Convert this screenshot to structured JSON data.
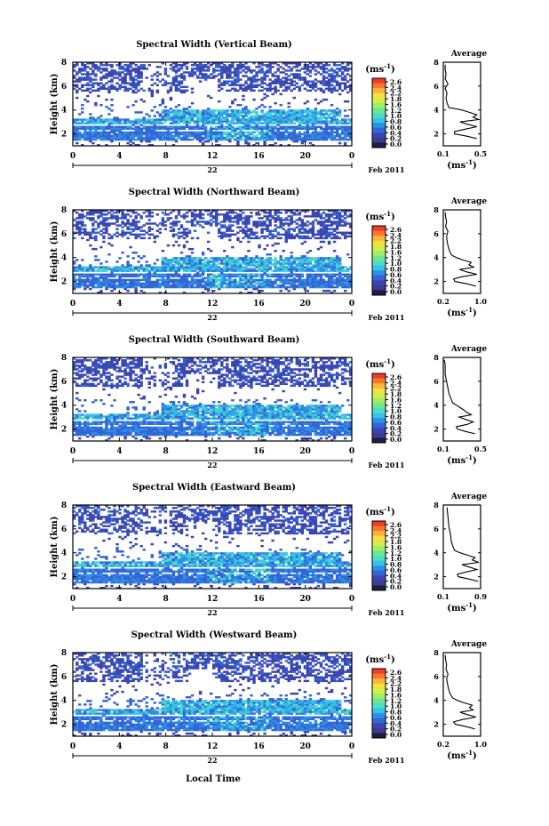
{
  "figure": {
    "xlabel": "Local Time",
    "date_label": "Feb 2011",
    "day_label": "22"
  },
  "colorbar": {
    "unit": "(ms",
    "unit_sup": "-1",
    "unit_close": ")",
    "ticks": [
      "2.6",
      "2.4",
      "2.2",
      "1.8",
      "1.6",
      "1.2",
      "1.0",
      "0.8",
      "0.6",
      "0.4",
      "0.2",
      "0.0"
    ],
    "colors": [
      "#f03a25",
      "#f5782a",
      "#f8b53b",
      "#f5df42",
      "#d3ee4c",
      "#a0ee66",
      "#6ee690",
      "#4fdcc4",
      "#37c2e6",
      "#2e8fe6",
      "#3565d4",
      "#3b46b0",
      "#3c3c90",
      "#1e1e40"
    ]
  },
  "chart_data": [
    {
      "type": "heatmap",
      "title": "Spectral Width (Vertical Beam)",
      "ylabel": "Height (km)",
      "x_ticks": [
        "0",
        "4",
        "8",
        "12",
        "16",
        "20",
        "0"
      ],
      "y_ticks": [
        "2",
        "4",
        "6",
        "8"
      ],
      "xlim": [
        0,
        24
      ],
      "ylim": [
        1,
        8
      ],
      "profile": {
        "title": "Average",
        "xlabel": "(ms",
        "x_ticks": [
          "0.1",
          "0.5"
        ],
        "xlim": [
          0.1,
          0.5
        ],
        "y_ticks": [
          "2",
          "4",
          "6",
          "8"
        ],
        "ylim": [
          1,
          8
        ],
        "height_km": [
          1.6,
          1.8,
          2.0,
          2.2,
          2.4,
          2.6,
          2.8,
          3.0,
          3.2,
          3.4,
          3.6,
          3.8,
          4.0,
          4.2,
          4.6,
          5.0,
          5.4,
          5.8,
          6.2,
          6.6,
          7.0,
          7.4,
          7.8
        ],
        "width_ms": [
          0.46,
          0.36,
          0.22,
          0.22,
          0.34,
          0.46,
          0.36,
          0.28,
          0.48,
          0.42,
          0.46,
          0.38,
          0.3,
          0.16,
          0.14,
          0.13,
          0.14,
          0.12,
          0.15,
          0.12,
          0.13,
          0.12,
          0.12
        ]
      }
    },
    {
      "type": "heatmap",
      "title": "Spectral Width (Northward Beam)",
      "ylabel": "Height (km)",
      "x_ticks": [
        "0",
        "4",
        "8",
        "12",
        "16",
        "20",
        "0"
      ],
      "y_ticks": [
        "2",
        "4",
        "6",
        "8"
      ],
      "xlim": [
        0,
        24
      ],
      "ylim": [
        1,
        8
      ],
      "profile": {
        "title": "Average",
        "xlabel": "(ms",
        "x_ticks": [
          "0.2",
          "1.0"
        ],
        "xlim": [
          0.2,
          1.0
        ],
        "y_ticks": [
          "2",
          "4",
          "6",
          "8"
        ],
        "ylim": [
          1,
          8
        ],
        "height_km": [
          1.6,
          1.8,
          2.0,
          2.2,
          2.4,
          2.6,
          2.8,
          3.0,
          3.2,
          3.4,
          3.6,
          3.8,
          4.0,
          4.2,
          4.6,
          5.0,
          5.4,
          5.8,
          6.2,
          6.6,
          7.0,
          7.4,
          7.8
        ],
        "width_ms": [
          0.9,
          0.72,
          0.45,
          0.42,
          0.6,
          0.92,
          0.7,
          0.55,
          0.85,
          0.75,
          0.8,
          0.62,
          0.48,
          0.38,
          0.33,
          0.3,
          0.28,
          0.27,
          0.3,
          0.25,
          0.27,
          0.25,
          0.24
        ]
      }
    },
    {
      "type": "heatmap",
      "title": "Spectral Width (Southward Beam)",
      "ylabel": "Height (km)",
      "x_ticks": [
        "0",
        "4",
        "8",
        "12",
        "16",
        "20",
        "0"
      ],
      "y_ticks": [
        "2",
        "4",
        "6",
        "8"
      ],
      "xlim": [
        0,
        24
      ],
      "ylim": [
        1,
        8
      ],
      "profile": {
        "title": "Average",
        "xlabel": "(ms",
        "x_ticks": [
          "0.1",
          "0.5"
        ],
        "xlim": [
          0.1,
          0.5
        ],
        "y_ticks": [
          "2",
          "4",
          "6",
          "8"
        ],
        "ylim": [
          1,
          8
        ],
        "height_km": [
          1.6,
          1.8,
          2.0,
          2.2,
          2.4,
          2.6,
          2.8,
          3.0,
          3.2,
          3.4,
          3.6,
          3.8,
          4.0,
          4.2,
          4.6,
          5.0,
          5.4,
          5.8,
          6.2,
          6.6,
          7.0,
          7.4,
          7.8
        ],
        "width_ms": [
          0.44,
          0.34,
          0.25,
          0.24,
          0.36,
          0.42,
          0.34,
          0.27,
          0.4,
          0.35,
          0.32,
          0.28,
          0.24,
          0.2,
          0.18,
          0.16,
          0.15,
          0.14,
          0.13,
          0.12,
          0.12,
          0.12,
          0.11
        ]
      }
    },
    {
      "type": "heatmap",
      "title": "Spectral Width (Eastward Beam)",
      "ylabel": "Height (km)",
      "x_ticks": [
        "0",
        "4",
        "8",
        "12",
        "16",
        "20",
        "0"
      ],
      "y_ticks": [
        "2",
        "4",
        "6",
        "8"
      ],
      "xlim": [
        0,
        24
      ],
      "ylim": [
        1,
        8
      ],
      "profile": {
        "title": "Average",
        "xlabel": "(ms",
        "x_ticks": [
          "0.1",
          "0.9"
        ],
        "xlim": [
          0.1,
          0.9
        ],
        "y_ticks": [
          "2",
          "4",
          "6",
          "8"
        ],
        "ylim": [
          1,
          8
        ],
        "height_km": [
          1.6,
          1.8,
          2.0,
          2.2,
          2.4,
          2.6,
          2.8,
          3.0,
          3.2,
          3.4,
          3.6,
          3.8,
          4.0,
          4.2,
          4.6,
          5.0,
          5.4,
          5.8,
          6.2,
          6.6,
          7.0,
          7.4,
          7.8
        ],
        "width_ms": [
          0.85,
          0.66,
          0.42,
          0.4,
          0.6,
          0.82,
          0.66,
          0.5,
          0.86,
          0.72,
          0.78,
          0.62,
          0.46,
          0.34,
          0.3,
          0.27,
          0.26,
          0.24,
          0.22,
          0.21,
          0.2,
          0.19,
          0.18
        ]
      }
    },
    {
      "type": "heatmap",
      "title": "Spectral Width (Westward Beam)",
      "ylabel": "Height (km)",
      "x_ticks": [
        "0",
        "4",
        "8",
        "12",
        "16",
        "20",
        "0"
      ],
      "y_ticks": [
        "2",
        "4",
        "6",
        "8"
      ],
      "xlim": [
        0,
        24
      ],
      "ylim": [
        1,
        8
      ],
      "profile": {
        "title": "Average",
        "xlabel": "(ms",
        "x_ticks": [
          "0.2",
          "1.0"
        ],
        "xlim": [
          0.2,
          1.0
        ],
        "y_ticks": [
          "2",
          "4",
          "6",
          "8"
        ],
        "ylim": [
          1,
          8
        ],
        "height_km": [
          1.6,
          1.8,
          2.0,
          2.2,
          2.4,
          2.6,
          2.8,
          3.0,
          3.2,
          3.4,
          3.6,
          3.8,
          4.0,
          4.2,
          4.6,
          5.0,
          5.4,
          5.8,
          6.2,
          6.6,
          7.0,
          7.4,
          7.8
        ],
        "width_ms": [
          0.88,
          0.7,
          0.46,
          0.42,
          0.62,
          0.9,
          0.72,
          0.56,
          0.84,
          0.76,
          0.82,
          0.64,
          0.5,
          0.4,
          0.34,
          0.31,
          0.29,
          0.27,
          0.3,
          0.26,
          0.27,
          0.25,
          0.24
        ]
      }
    }
  ]
}
